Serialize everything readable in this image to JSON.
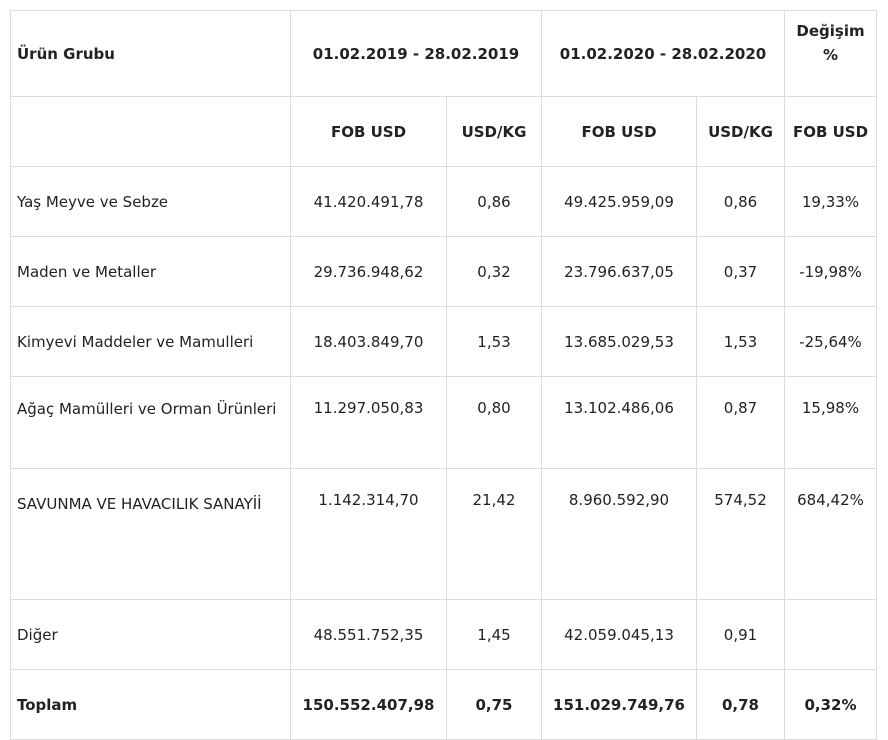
{
  "header": {
    "product_group": "Ürün Grubu",
    "period_2019": "01.02.2019 - 28.02.2019",
    "period_2020": "01.02.2020 - 28.02.2020",
    "change_line1": "Değişim",
    "change_line2": "%",
    "fob_usd": "FOB USD",
    "usd_kg": "USD/KG"
  },
  "rows": [
    {
      "name": "Yaş Meyve ve Sebze",
      "fob_2019": "41.420.491,78",
      "usdkg_2019": "0,86",
      "fob_2020": "49.425.959,09",
      "usdkg_2020": "0,86",
      "change": "19,33%"
    },
    {
      "name": "Maden ve Metaller",
      "fob_2019": "29.736.948,62",
      "usdkg_2019": "0,32",
      "fob_2020": "23.796.637,05",
      "usdkg_2020": "0,37",
      "change": "-19,98%"
    },
    {
      "name": "Kimyevi Maddeler ve Mamulleri",
      "fob_2019": "18.403.849,70",
      "usdkg_2019": "1,53",
      "fob_2020": "13.685.029,53",
      "usdkg_2020": "1,53",
      "change": "-25,64%"
    },
    {
      "name": "Ağaç Mamülleri ve Orman Ürünleri",
      "fob_2019": "11.297.050,83",
      "usdkg_2019": "0,80",
      "fob_2020": "13.102.486,06",
      "usdkg_2020": "0,87",
      "change": "15,98%"
    },
    {
      "name": "SAVUNMA VE HAVACILIK SANAYİİ",
      "fob_2019": "1.142.314,70",
      "usdkg_2019": "21,42",
      "fob_2020": "8.960.592,90",
      "usdkg_2020": "574,52",
      "change": "684,42%"
    },
    {
      "name": "Diğer",
      "fob_2019": "48.551.752,35",
      "usdkg_2019": "1,45",
      "fob_2020": "42.059.045,13",
      "usdkg_2020": "0,91",
      "change": ""
    }
  ],
  "total": {
    "name": "Toplam",
    "fob_2019": "150.552.407,98",
    "usdkg_2019": "0,75",
    "fob_2020": "151.029.749,76",
    "usdkg_2020": "0,78",
    "change": "0,32%"
  }
}
